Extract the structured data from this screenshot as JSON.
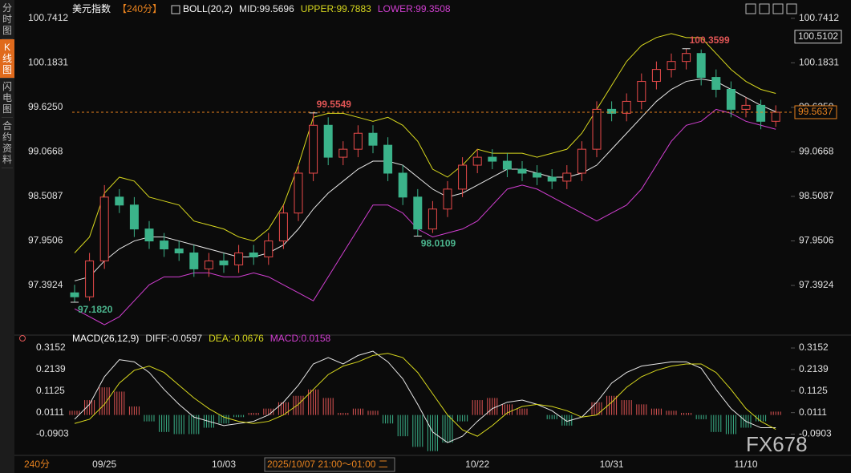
{
  "sidebar": {
    "tabs": [
      "分时图",
      "K线图",
      "闪电图",
      "合约资料"
    ]
  },
  "chart_data": [
    {
      "type": "candlestick",
      "title": "美元指数",
      "period": "【240分】",
      "indicator": "BOLL(20,2)",
      "legend": [
        {
          "text": "MID:99.5696",
          "color": "#e8e8e8"
        },
        {
          "text": "UPPER:99.7883",
          "color": "#d8d81e"
        },
        {
          "text": "LOWER:99.3508",
          "color": "#d23fd2"
        }
      ],
      "categories": [
        null,
        null,
        "09/25",
        null,
        null,
        null,
        null,
        null,
        null,
        null,
        "10/03",
        null,
        null,
        null,
        null,
        null,
        null,
        null,
        null,
        null,
        null,
        null,
        null,
        null,
        null,
        null,
        null,
        "10/22",
        null,
        null,
        null,
        null,
        null,
        null,
        null,
        null,
        "10/31",
        null,
        null,
        null,
        null,
        null,
        null,
        null,
        null,
        "11/10",
        null,
        null
      ],
      "open": [
        97.3,
        97.25,
        97.7,
        98.5,
        98.4,
        98.1,
        97.95,
        97.85,
        97.8,
        97.6,
        97.7,
        97.65,
        97.8,
        97.75,
        97.95,
        98.3,
        98.8,
        99.4,
        99.0,
        99.1,
        99.3,
        99.15,
        98.8,
        98.5,
        98.1,
        98.35,
        98.6,
        98.9,
        99.0,
        98.95,
        98.85,
        98.8,
        98.75,
        98.7,
        98.8,
        99.1,
        99.6,
        99.55,
        99.7,
        99.95,
        100.1,
        100.2,
        100.3,
        100.0,
        99.85,
        99.6,
        99.65,
        99.45
      ],
      "high": [
        97.4,
        97.8,
        98.65,
        98.6,
        98.5,
        98.2,
        98.05,
        97.95,
        97.9,
        97.8,
        97.8,
        97.9,
        97.9,
        98.05,
        98.4,
        98.9,
        99.5549,
        99.5,
        99.2,
        99.4,
        99.4,
        99.25,
        98.9,
        98.6,
        98.45,
        98.7,
        99.0,
        99.1,
        99.1,
        99.05,
        98.95,
        98.9,
        98.85,
        98.9,
        99.2,
        99.7,
        99.7,
        99.8,
        100.05,
        100.2,
        100.3,
        100.3599,
        100.35,
        100.1,
        99.95,
        99.75,
        99.72,
        99.65
      ],
      "low": [
        97.182,
        97.2,
        97.6,
        98.3,
        98.0,
        97.85,
        97.75,
        97.7,
        97.5,
        97.5,
        97.55,
        97.55,
        97.65,
        97.65,
        97.85,
        98.2,
        98.7,
        98.9,
        98.9,
        99.0,
        99.05,
        98.7,
        98.4,
        98.0109,
        98.05,
        98.25,
        98.5,
        98.8,
        98.85,
        98.75,
        98.7,
        98.65,
        98.6,
        98.6,
        98.7,
        99.0,
        99.45,
        99.45,
        99.6,
        99.85,
        100.0,
        100.1,
        99.9,
        99.75,
        99.5,
        99.5,
        99.35,
        99.38
      ],
      "close": [
        97.25,
        97.7,
        98.5,
        98.4,
        98.1,
        97.95,
        97.85,
        97.8,
        97.6,
        97.7,
        97.65,
        97.8,
        97.75,
        97.95,
        98.3,
        98.8,
        99.4,
        99.0,
        99.1,
        99.3,
        99.15,
        98.8,
        98.5,
        98.1,
        98.35,
        98.6,
        98.9,
        99.0,
        98.95,
        98.85,
        98.8,
        98.75,
        98.7,
        98.8,
        99.1,
        99.6,
        99.55,
        99.7,
        99.95,
        100.1,
        100.2,
        100.3,
        100.0,
        99.85,
        99.6,
        99.65,
        99.45,
        99.5637
      ],
      "up_color": "#e84a4a",
      "down_color": "#3bb38a",
      "series": [
        {
          "color": "#d8d81e",
          "values": [
            97.8,
            98.0,
            98.55,
            98.75,
            98.7,
            98.5,
            98.45,
            98.4,
            98.2,
            98.15,
            98.1,
            98.0,
            97.95,
            98.1,
            98.4,
            98.9,
            99.5,
            99.55,
            99.55,
            99.5,
            99.45,
            99.5,
            99.4,
            99.2,
            98.85,
            98.75,
            98.9,
            99.1,
            99.05,
            99.05,
            99.05,
            99.0,
            99.05,
            99.1,
            99.3,
            99.6,
            99.9,
            100.2,
            100.4,
            100.5,
            100.55,
            100.5,
            100.5,
            100.3,
            100.1,
            99.95,
            99.85,
            99.8
          ]
        },
        {
          "color": "#e8e8e8",
          "values": [
            97.45,
            97.5,
            97.7,
            97.85,
            97.95,
            98.0,
            98.0,
            97.95,
            97.9,
            97.85,
            97.8,
            97.75,
            97.75,
            97.8,
            97.9,
            98.1,
            98.35,
            98.55,
            98.7,
            98.85,
            98.95,
            98.95,
            98.9,
            98.75,
            98.6,
            98.5,
            98.55,
            98.65,
            98.75,
            98.85,
            98.85,
            98.8,
            98.75,
            98.75,
            98.8,
            98.9,
            99.1,
            99.3,
            99.5,
            99.7,
            99.85,
            99.95,
            99.98,
            99.95,
            99.85,
            99.75,
            99.65,
            99.57
          ]
        },
        {
          "color": "#d23fd2",
          "values": [
            97.1,
            97.0,
            96.9,
            97.0,
            97.2,
            97.4,
            97.5,
            97.5,
            97.55,
            97.55,
            97.5,
            97.5,
            97.55,
            97.5,
            97.4,
            97.3,
            97.2,
            97.5,
            97.8,
            98.1,
            98.4,
            98.4,
            98.3,
            98.1,
            98.0,
            98.05,
            98.1,
            98.2,
            98.4,
            98.6,
            98.65,
            98.6,
            98.5,
            98.4,
            98.3,
            98.2,
            98.3,
            98.4,
            98.6,
            98.9,
            99.2,
            99.4,
            99.45,
            99.6,
            99.55,
            99.45,
            99.4,
            99.35
          ]
        }
      ],
      "ylim": [
        96.8,
        100.87
      ],
      "yticks": [
        97.3924,
        97.9506,
        98.5087,
        99.0668,
        {
          "value": 99.625,
          "label": "99.6250"
        },
        100.1831,
        100.7412
      ],
      "last_price": {
        "value": 99.5637,
        "label": "99.5637"
      },
      "price_marker": {
        "value": 100.5102,
        "label": "100.5102"
      },
      "annotations": [
        {
          "value": 97.182,
          "label": "97.1820"
        },
        {
          "value": 99.5549,
          "label": "99.5549"
        },
        {
          "value": 98.0109,
          "label": "98.0109"
        },
        {
          "value": 100.3599,
          "label": "100.3599"
        }
      ]
    },
    {
      "type": "macd",
      "title": "MACD(26,12,9)",
      "legend": [
        {
          "text": "DIFF:-0.0597",
          "color": "#e8e8e8"
        },
        {
          "text": "DEA:-0.0676",
          "color": "#d8d81e"
        },
        {
          "text": "MACD:0.0158",
          "color": "#d23fd2"
        }
      ],
      "series": [
        {
          "color": "#e8e8e8",
          "values": [
            -0.02,
            0.05,
            0.18,
            0.26,
            0.25,
            0.2,
            0.12,
            0.05,
            -0.01,
            -0.03,
            -0.05,
            -0.04,
            -0.03,
            0.0,
            0.06,
            0.14,
            0.24,
            0.27,
            0.24,
            0.28,
            0.3,
            0.25,
            0.17,
            0.05,
            -0.08,
            -0.13,
            -0.1,
            -0.03,
            0.03,
            0.06,
            0.07,
            0.05,
            0.02,
            -0.03,
            -0.01,
            0.06,
            0.15,
            0.2,
            0.23,
            0.24,
            0.25,
            0.25,
            0.22,
            0.12,
            0.03,
            -0.03,
            -0.06,
            -0.0597
          ]
        },
        {
          "color": "#d8d81e",
          "values": [
            -0.04,
            -0.02,
            0.05,
            0.15,
            0.21,
            0.23,
            0.2,
            0.14,
            0.08,
            0.03,
            -0.01,
            -0.03,
            -0.04,
            -0.03,
            0.0,
            0.05,
            0.12,
            0.19,
            0.23,
            0.25,
            0.28,
            0.29,
            0.27,
            0.2,
            0.1,
            0.0,
            -0.07,
            -0.1,
            -0.05,
            0.01,
            0.04,
            0.05,
            0.04,
            0.02,
            -0.01,
            0.0,
            0.06,
            0.13,
            0.18,
            0.21,
            0.23,
            0.24,
            0.24,
            0.2,
            0.12,
            0.03,
            -0.03,
            -0.0676
          ]
        }
      ],
      "histogram": {
        "up_color": "#e05555",
        "down_color": "#3bb38a",
        "values": [
          0.02,
          0.07,
          0.13,
          0.11,
          0.04,
          -0.03,
          -0.08,
          -0.09,
          -0.09,
          -0.06,
          -0.04,
          -0.01,
          0.01,
          0.03,
          0.06,
          0.09,
          0.12,
          0.08,
          0.01,
          0.03,
          0.02,
          -0.04,
          -0.1,
          -0.15,
          -0.17,
          -0.13,
          -0.03,
          0.07,
          0.08,
          0.05,
          0.03,
          0.0,
          -0.02,
          -0.05,
          0.0,
          0.06,
          0.09,
          0.07,
          0.05,
          0.03,
          0.02,
          0.01,
          -0.02,
          -0.08,
          -0.09,
          -0.06,
          -0.03,
          0.0158
        ]
      },
      "ylim": [
        -0.19,
        0.338
      ],
      "yticks": [
        -0.0903,
        0.0111,
        0.1125,
        0.2139,
        0.3152
      ]
    }
  ],
  "footer": {
    "period": "240分",
    "crosshair": "2025/10/07 21:00～01:00 二"
  },
  "watermark": "FX678"
}
